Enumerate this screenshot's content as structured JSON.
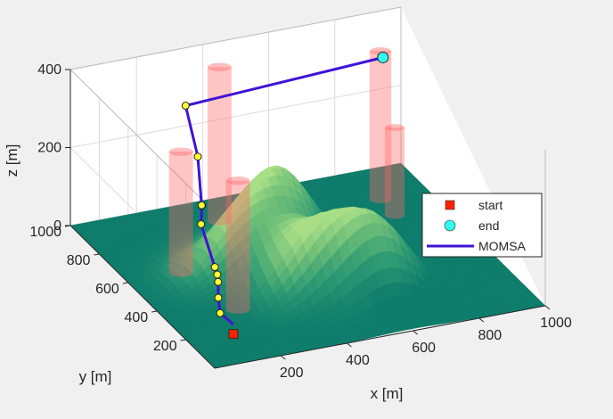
{
  "chart_data": {
    "type": "3d-surface-path",
    "axes": {
      "xlabel": "x [m]",
      "ylabel": "y [m]",
      "zlabel": "z [m]",
      "xlim": [
        0,
        1000
      ],
      "ylim": [
        0,
        1000
      ],
      "zlim": [
        0,
        400
      ],
      "xticks": [
        "200",
        "400",
        "600",
        "800",
        "1000"
      ],
      "yticks": [
        "200",
        "400",
        "600",
        "800",
        "1000"
      ],
      "zticks": [
        "0",
        "200",
        "400"
      ],
      "grid": true
    },
    "terrain": {
      "colormap": [
        "#0e7c6b",
        "#2f9b73",
        "#6fbf78",
        "#a8de86"
      ],
      "peaks": [
        {
          "x": 460,
          "y": 600,
          "z": 200
        },
        {
          "x": 600,
          "y": 250,
          "z": 175
        },
        {
          "x": 450,
          "y": 330,
          "z": 150
        },
        {
          "x": 300,
          "y": 520,
          "z": 130
        }
      ]
    },
    "obstacles": {
      "color": "#ff6666",
      "cylinders": [
        {
          "x": 160,
          "y": 600,
          "radius": 55,
          "height": 310
        },
        {
          "x": 390,
          "y": 860,
          "radius": 55,
          "height": 395
        },
        {
          "x": 210,
          "y": 320,
          "radius": 55,
          "height": 330
        },
        {
          "x": 855,
          "y": 810,
          "radius": 50,
          "height": 380
        },
        {
          "x": 850,
          "y": 700,
          "radius": 45,
          "height": 225
        }
      ]
    },
    "series": [
      {
        "name": "MOMSA",
        "color": "#3f13d6",
        "waypoint_color": "#ffff33",
        "points": [
          {
            "x": 100,
            "y": 100,
            "z": 60
          },
          {
            "x": 95,
            "y": 180,
            "z": 60
          },
          {
            "x": 120,
            "y": 250,
            "z": 70
          },
          {
            "x": 150,
            "y": 320,
            "z": 80
          },
          {
            "x": 165,
            "y": 360,
            "z": 82
          },
          {
            "x": 175,
            "y": 400,
            "z": 85
          },
          {
            "x": 190,
            "y": 530,
            "z": 145
          },
          {
            "x": 210,
            "y": 570,
            "z": 175
          },
          {
            "x": 205,
            "y": 560,
            "z": 180
          },
          {
            "x": 250,
            "y": 690,
            "z": 250
          },
          {
            "x": 270,
            "y": 820,
            "z": 330
          },
          {
            "x": 880,
            "y": 850,
            "z": 345
          }
        ]
      }
    ],
    "markers": {
      "start": {
        "x": 100,
        "y": 100,
        "z": 35,
        "color": "#ff2200"
      },
      "end": {
        "x": 880,
        "y": 850,
        "z": 345,
        "color": "#33ffee"
      }
    },
    "legend": {
      "position": "right",
      "entries": [
        {
          "label": "start",
          "symbol": "square",
          "color": "#ff2200"
        },
        {
          "label": "end",
          "symbol": "circle",
          "color": "#33ffee"
        },
        {
          "label": "MOMSA",
          "symbol": "line",
          "color": "#3f13d6"
        }
      ]
    }
  }
}
